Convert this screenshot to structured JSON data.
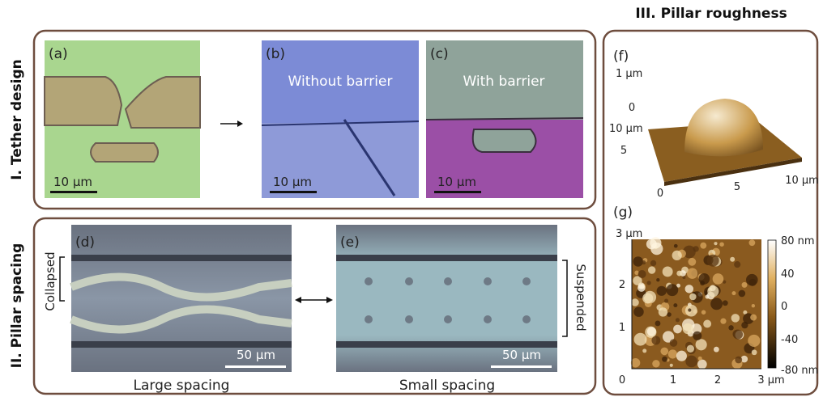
{
  "section_1": {
    "title": "I. Tether design",
    "panels": [
      {
        "label": "(a)",
        "scale_bar": "10 µm"
      },
      {
        "label": "(b)",
        "caption": "Without barrier",
        "scale_bar": "10 µm"
      },
      {
        "label": "(c)",
        "caption": "With barrier",
        "scale_bar": "10 µm"
      }
    ]
  },
  "section_2": {
    "title": "II. Pillar spacing",
    "panels": [
      {
        "label": "(d)",
        "side_label": "Collapsed",
        "scale_bar": "50 µm",
        "caption": "Large spacing"
      },
      {
        "label": "(e)",
        "side_label": "Suspended",
        "scale_bar": "50 µm",
        "caption": "Small spacing"
      }
    ]
  },
  "section_3": {
    "title": "III. Pillar roughness",
    "panels": [
      {
        "label": "(f)",
        "z_axis": [
          "1 µm",
          "0"
        ],
        "y_axis": [
          "10 µm",
          "5"
        ],
        "x_axis": [
          "0",
          "5",
          "10 µm"
        ]
      },
      {
        "label": "(g)",
        "y_axis": [
          "3 µm",
          "2",
          "1"
        ],
        "x_axis": [
          "0",
          "1",
          "2",
          "3 µm"
        ],
        "colorbar": [
          "80 nm",
          "40",
          "0",
          "-40",
          "-80 nm"
        ]
      }
    ]
  }
}
